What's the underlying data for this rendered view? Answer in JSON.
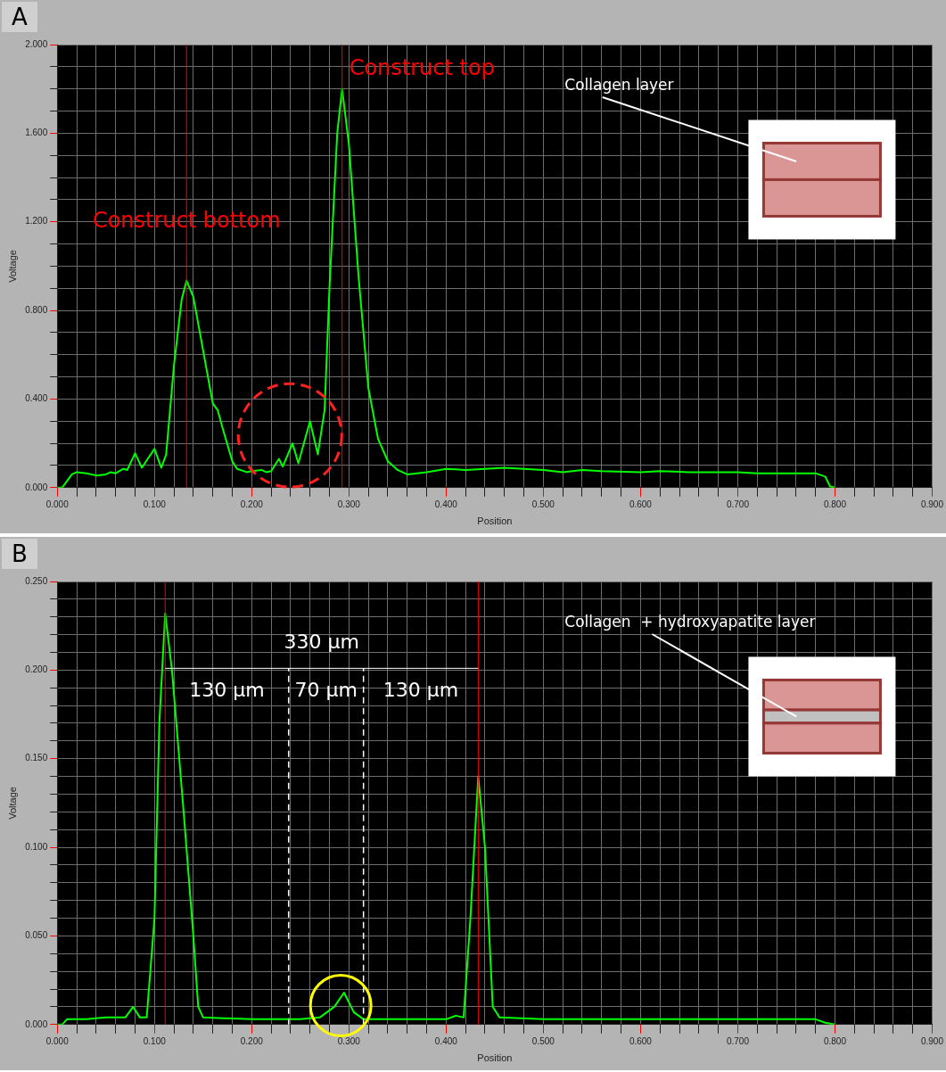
{
  "chart_data": [
    {
      "type": "line",
      "title": "A",
      "xlabel": "Position",
      "ylabel": "Voltage",
      "grid": true,
      "legend": false,
      "marker": "none",
      "xlim": [
        0,
        0.9
      ],
      "ylim": [
        0,
        2.0
      ],
      "xticks": [
        {
          "value": 0,
          "label": "0.000"
        },
        {
          "value": 0.02,
          "label": null
        },
        {
          "value": 0.04,
          "label": null
        },
        {
          "value": 0.06,
          "label": null
        },
        {
          "value": 0.08,
          "label": null
        },
        {
          "value": 0.1,
          "label": "0.100"
        },
        {
          "value": 0.12,
          "label": null
        },
        {
          "value": 0.14,
          "label": null
        },
        {
          "value": 0.16,
          "label": null
        },
        {
          "value": 0.18,
          "label": null
        },
        {
          "value": 0.2,
          "label": "0.200"
        },
        {
          "value": 0.22,
          "label": null
        },
        {
          "value": 0.24,
          "label": null
        },
        {
          "value": 0.26,
          "label": null
        },
        {
          "value": 0.28,
          "label": null
        },
        {
          "value": 0.3,
          "label": "0.300"
        },
        {
          "value": 0.32,
          "label": null
        },
        {
          "value": 0.34,
          "label": null
        },
        {
          "value": 0.36,
          "label": null
        },
        {
          "value": 0.38,
          "label": null
        },
        {
          "value": 0.4,
          "label": "0.400"
        },
        {
          "value": 0.42,
          "label": null
        },
        {
          "value": 0.44,
          "label": null
        },
        {
          "value": 0.46,
          "label": null
        },
        {
          "value": 0.48,
          "label": null
        },
        {
          "value": 0.5,
          "label": "0.500"
        },
        {
          "value": 0.52,
          "label": null
        },
        {
          "value": 0.54,
          "label": null
        },
        {
          "value": 0.56,
          "label": null
        },
        {
          "value": 0.58,
          "label": null
        },
        {
          "value": 0.6,
          "label": "0.600"
        },
        {
          "value": 0.62,
          "label": null
        },
        {
          "value": 0.64,
          "label": null
        },
        {
          "value": 0.66,
          "label": null
        },
        {
          "value": 0.68,
          "label": null
        },
        {
          "value": 0.7,
          "label": "0.700"
        },
        {
          "value": 0.72,
          "label": null
        },
        {
          "value": 0.74,
          "label": null
        },
        {
          "value": 0.76,
          "label": null
        },
        {
          "value": 0.78,
          "label": null
        },
        {
          "value": 0.8,
          "label": "0.800"
        },
        {
          "value": 0.82,
          "label": null
        },
        {
          "value": 0.84,
          "label": null
        },
        {
          "value": 0.86,
          "label": null
        },
        {
          "value": 0.88,
          "label": null
        },
        {
          "value": 0.9,
          "label": "0.900"
        }
      ],
      "yticks": [
        {
          "value": 0,
          "label": "0.000"
        },
        {
          "value": 0.1,
          "label": null
        },
        {
          "value": 0.2,
          "label": null
        },
        {
          "value": 0.3,
          "label": null
        },
        {
          "value": 0.4,
          "label": "0.400"
        },
        {
          "value": 0.5,
          "label": null
        },
        {
          "value": 0.6,
          "label": null
        },
        {
          "value": 0.7,
          "label": null
        },
        {
          "value": 0.8,
          "label": "0.800"
        },
        {
          "value": 0.9,
          "label": null
        },
        {
          "value": 1.0,
          "label": null
        },
        {
          "value": 1.1,
          "label": null
        },
        {
          "value": 1.2,
          "label": "1.200"
        },
        {
          "value": 1.3,
          "label": null
        },
        {
          "value": 1.4,
          "label": null
        },
        {
          "value": 1.5,
          "label": null
        },
        {
          "value": 1.6,
          "label": "1.600"
        },
        {
          "value": 1.7,
          "label": null
        },
        {
          "value": 1.8,
          "label": null
        },
        {
          "value": 1.9,
          "label": null
        },
        {
          "value": 2.0,
          "label": "2.000"
        }
      ],
      "x": [
        0,
        0.005,
        0.01,
        0.015,
        0.02,
        0.03,
        0.04,
        0.05,
        0.055,
        0.06,
        0.068,
        0.072,
        0.08,
        0.087,
        0.093,
        0.1,
        0.107,
        0.112,
        0.12,
        0.128,
        0.133,
        0.14,
        0.15,
        0.16,
        0.165,
        0.17,
        0.18,
        0.185,
        0.195,
        0.2,
        0.21,
        0.215,
        0.22,
        0.228,
        0.232,
        0.242,
        0.248,
        0.26,
        0.268,
        0.275,
        0.28,
        0.288,
        0.293,
        0.3,
        0.31,
        0.32,
        0.33,
        0.34,
        0.35,
        0.36,
        0.38,
        0.4,
        0.42,
        0.44,
        0.46,
        0.48,
        0.5,
        0.52,
        0.54,
        0.56,
        0.6,
        0.62,
        0.65,
        0.7,
        0.72,
        0.75,
        0.78,
        0.79,
        0.795,
        0.8
      ],
      "series": [
        {
          "color": "#00ff00",
          "values": [
            0,
            0,
            0.03,
            0.06,
            0.07,
            0.065,
            0.055,
            0.06,
            0.07,
            0.065,
            0.085,
            0.08,
            0.155,
            0.09,
            0.13,
            0.175,
            0.09,
            0.15,
            0.55,
            0.85,
            0.935,
            0.86,
            0.62,
            0.38,
            0.35,
            0.27,
            0.12,
            0.085,
            0.07,
            0.075,
            0.08,
            0.07,
            0.075,
            0.13,
            0.095,
            0.2,
            0.11,
            0.3,
            0.15,
            0.35,
            0.9,
            1.6,
            1.8,
            1.55,
            0.95,
            0.45,
            0.22,
            0.12,
            0.08,
            0.06,
            0.07,
            0.085,
            0.08,
            0.085,
            0.09,
            0.085,
            0.08,
            0.07,
            0.08,
            0.075,
            0.07,
            0.075,
            0.07,
            0.07,
            0.065,
            0.065,
            0.065,
            0.05,
            0.005,
            0
          ]
        }
      ],
      "ref_lines": [
        {
          "axis": "x",
          "value": 0.133,
          "label": "Construct bottom",
          "color": "#ff0000"
        },
        {
          "axis": "x",
          "value": 0.293,
          "label": "Construct top",
          "color": "#ff0000"
        }
      ],
      "annotations": [
        "Collagen layer"
      ]
    },
    {
      "type": "line",
      "title": "B",
      "xlabel": "Position",
      "ylabel": "Voltage",
      "grid": true,
      "legend": false,
      "marker": "none",
      "xlim": [
        0,
        0.9
      ],
      "ylim": [
        0,
        0.25
      ],
      "xticks": [
        {
          "value": 0,
          "label": "0.000"
        },
        {
          "value": 0.02,
          "label": null
        },
        {
          "value": 0.04,
          "label": null
        },
        {
          "value": 0.06,
          "label": null
        },
        {
          "value": 0.08,
          "label": null
        },
        {
          "value": 0.1,
          "label": "0.100"
        },
        {
          "value": 0.12,
          "label": null
        },
        {
          "value": 0.14,
          "label": null
        },
        {
          "value": 0.16,
          "label": null
        },
        {
          "value": 0.18,
          "label": null
        },
        {
          "value": 0.2,
          "label": "0.200"
        },
        {
          "value": 0.22,
          "label": null
        },
        {
          "value": 0.24,
          "label": null
        },
        {
          "value": 0.26,
          "label": null
        },
        {
          "value": 0.28,
          "label": null
        },
        {
          "value": 0.3,
          "label": "0.300"
        },
        {
          "value": 0.32,
          "label": null
        },
        {
          "value": 0.34,
          "label": null
        },
        {
          "value": 0.36,
          "label": null
        },
        {
          "value": 0.38,
          "label": null
        },
        {
          "value": 0.4,
          "label": "0.400"
        },
        {
          "value": 0.42,
          "label": null
        },
        {
          "value": 0.44,
          "label": null
        },
        {
          "value": 0.46,
          "label": null
        },
        {
          "value": 0.48,
          "label": null
        },
        {
          "value": 0.5,
          "label": "0.500"
        },
        {
          "value": 0.52,
          "label": null
        },
        {
          "value": 0.54,
          "label": null
        },
        {
          "value": 0.56,
          "label": null
        },
        {
          "value": 0.58,
          "label": null
        },
        {
          "value": 0.6,
          "label": "0.600"
        },
        {
          "value": 0.62,
          "label": null
        },
        {
          "value": 0.64,
          "label": null
        },
        {
          "value": 0.66,
          "label": null
        },
        {
          "value": 0.68,
          "label": null
        },
        {
          "value": 0.7,
          "label": "0.700"
        },
        {
          "value": 0.72,
          "label": null
        },
        {
          "value": 0.74,
          "label": null
        },
        {
          "value": 0.76,
          "label": null
        },
        {
          "value": 0.78,
          "label": null
        },
        {
          "value": 0.8,
          "label": "0.800"
        },
        {
          "value": 0.82,
          "label": null
        },
        {
          "value": 0.84,
          "label": null
        },
        {
          "value": 0.86,
          "label": null
        },
        {
          "value": 0.88,
          "label": null
        },
        {
          "value": 0.9,
          "label": "0.900"
        }
      ],
      "yticks": [
        {
          "value": 0,
          "label": "0.000"
        },
        {
          "value": 0.01,
          "label": null
        },
        {
          "value": 0.02,
          "label": null
        },
        {
          "value": 0.03,
          "label": null
        },
        {
          "value": 0.04,
          "label": null
        },
        {
          "value": 0.05,
          "label": "0.050"
        },
        {
          "value": 0.06,
          "label": null
        },
        {
          "value": 0.07,
          "label": null
        },
        {
          "value": 0.08,
          "label": null
        },
        {
          "value": 0.09,
          "label": null
        },
        {
          "value": 0.1,
          "label": "0.100"
        },
        {
          "value": 0.11,
          "label": null
        },
        {
          "value": 0.12,
          "label": null
        },
        {
          "value": 0.13,
          "label": null
        },
        {
          "value": 0.14,
          "label": null
        },
        {
          "value": 0.15,
          "label": "0.150"
        },
        {
          "value": 0.16,
          "label": null
        },
        {
          "value": 0.17,
          "label": null
        },
        {
          "value": 0.18,
          "label": null
        },
        {
          "value": 0.19,
          "label": null
        },
        {
          "value": 0.2,
          "label": "0.200"
        },
        {
          "value": 0.21,
          "label": null
        },
        {
          "value": 0.22,
          "label": null
        },
        {
          "value": 0.23,
          "label": null
        },
        {
          "value": 0.24,
          "label": null
        },
        {
          "value": 0.25,
          "label": "0.250"
        }
      ],
      "x": [
        0,
        0.005,
        0.01,
        0.03,
        0.05,
        0.07,
        0.078,
        0.085,
        0.092,
        0.1,
        0.105,
        0.111,
        0.118,
        0.13,
        0.14,
        0.145,
        0.15,
        0.2,
        0.25,
        0.27,
        0.285,
        0.295,
        0.305,
        0.315,
        0.35,
        0.4,
        0.41,
        0.418,
        0.425,
        0.433,
        0.44,
        0.448,
        0.455,
        0.5,
        0.6,
        0.7,
        0.78,
        0.79,
        0.8
      ],
      "series": [
        {
          "color": "#00ff00",
          "values": [
            0,
            0,
            0.003,
            0.003,
            0.004,
            0.004,
            0.01,
            0.004,
            0.004,
            0.06,
            0.17,
            0.232,
            0.2,
            0.12,
            0.05,
            0.01,
            0.004,
            0.003,
            0.003,
            0.004,
            0.01,
            0.018,
            0.007,
            0.003,
            0.003,
            0.003,
            0.005,
            0.004,
            0.06,
            0.14,
            0.1,
            0.01,
            0.004,
            0.003,
            0.003,
            0.003,
            0.003,
            0.001,
            0
          ]
        }
      ],
      "ref_lines": [
        {
          "axis": "x",
          "value": 0.111,
          "color": "#ff0000"
        },
        {
          "axis": "x",
          "value": 0.433,
          "color": "#ff0000"
        },
        {
          "axis": "x",
          "value": 0.238,
          "color": "#ffffff",
          "line_style": "dashed"
        },
        {
          "axis": "x",
          "value": 0.315,
          "color": "#ffffff",
          "line_style": "dashed"
        },
        {
          "axis": "y",
          "value": 0.201,
          "color": "#ffffff"
        }
      ],
      "annotations": [
        "Collagen  + hydroxyapatite layer",
        "330 µm",
        "130 µm",
        "70 µm",
        "130 µm"
      ]
    }
  ]
}
